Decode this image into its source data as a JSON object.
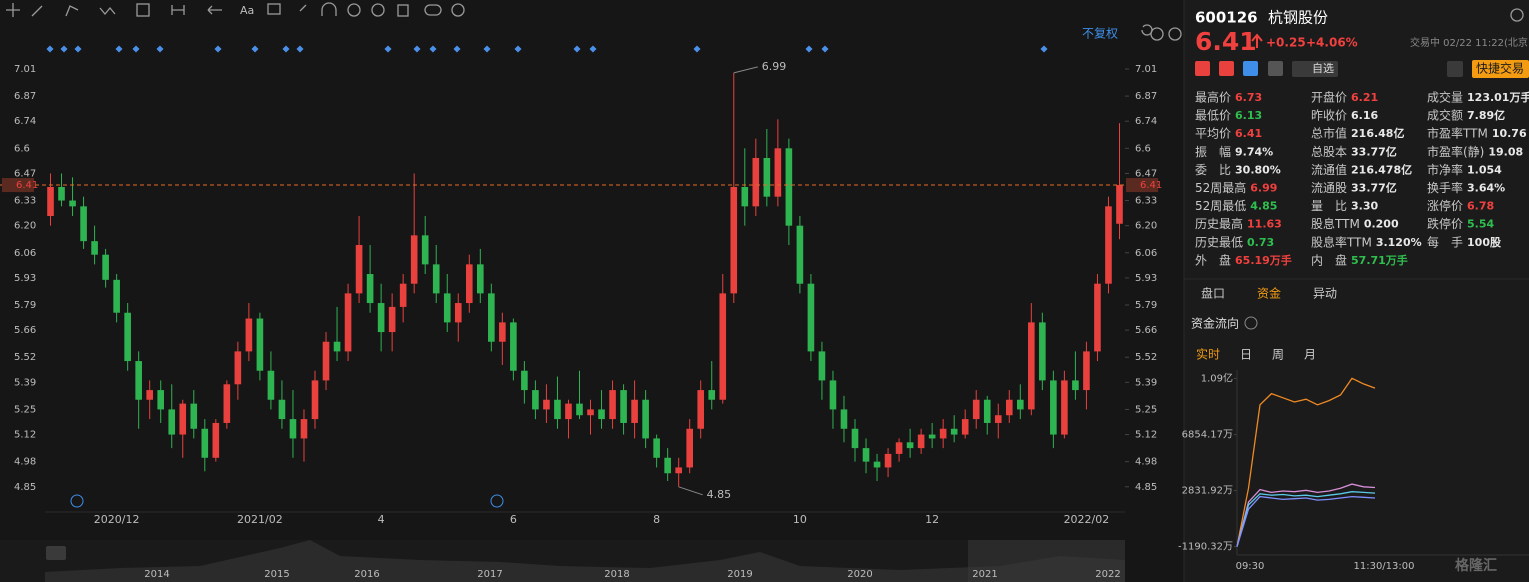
{
  "toolbar": {
    "font_tool": "Aa"
  },
  "chart_data": {
    "type": "candlestick",
    "adjust_label": "不复权",
    "categories": [
      null,
      null,
      null,
      null,
      null,
      null,
      "2020/12",
      null,
      null,
      null,
      null,
      null,
      null,
      null,
      null,
      null,
      null,
      null,
      null,
      "2021/02",
      null,
      null,
      null,
      null,
      null,
      null,
      null,
      null,
      null,
      null,
      "4",
      null,
      null,
      null,
      null,
      null,
      null,
      null,
      null,
      null,
      null,
      null,
      "6",
      null,
      null,
      null,
      null,
      null,
      null,
      null,
      null,
      null,
      null,
      null,
      null,
      "8",
      null,
      null,
      null,
      null,
      null,
      null,
      null,
      null,
      null,
      null,
      null,
      null,
      "10",
      null,
      null,
      null,
      null,
      null,
      null,
      null,
      null,
      null,
      null,
      null,
      "12",
      null,
      null,
      null,
      null,
      null,
      null,
      null,
      null,
      null,
      null,
      null,
      null,
      null,
      "2022/02",
      null,
      null,
      null
    ],
    "candles": [
      [
        6.25,
        6.47,
        6.2,
        6.4
      ],
      [
        6.4,
        6.47,
        6.3,
        6.33
      ],
      [
        6.33,
        6.45,
        6.25,
        6.3
      ],
      [
        6.3,
        6.35,
        6.08,
        6.12
      ],
      [
        6.12,
        6.2,
        6.0,
        6.05
      ],
      [
        6.05,
        6.08,
        5.88,
        5.92
      ],
      [
        5.92,
        5.95,
        5.7,
        5.75
      ],
      [
        5.75,
        5.8,
        5.45,
        5.5
      ],
      [
        5.5,
        5.55,
        5.15,
        5.3
      ],
      [
        5.3,
        5.4,
        5.2,
        5.35
      ],
      [
        5.35,
        5.4,
        5.18,
        5.25
      ],
      [
        5.25,
        5.38,
        5.05,
        5.12
      ],
      [
        5.12,
        5.3,
        5.0,
        5.28
      ],
      [
        5.28,
        5.35,
        5.1,
        5.15
      ],
      [
        5.15,
        5.2,
        4.93,
        5.0
      ],
      [
        5.0,
        5.2,
        4.98,
        5.18
      ],
      [
        5.18,
        5.4,
        5.15,
        5.38
      ],
      [
        5.38,
        5.6,
        5.3,
        5.55
      ],
      [
        5.55,
        5.8,
        5.5,
        5.72
      ],
      [
        5.72,
        5.75,
        5.4,
        5.45
      ],
      [
        5.45,
        5.55,
        5.25,
        5.3
      ],
      [
        5.3,
        5.4,
        5.15,
        5.2
      ],
      [
        5.2,
        5.35,
        5.0,
        5.1
      ],
      [
        5.1,
        5.25,
        4.98,
        5.2
      ],
      [
        5.2,
        5.45,
        5.15,
        5.4
      ],
      [
        5.4,
        5.65,
        5.35,
        5.6
      ],
      [
        5.6,
        5.78,
        5.5,
        5.55
      ],
      [
        5.55,
        5.9,
        5.5,
        5.85
      ],
      [
        5.85,
        6.25,
        5.8,
        6.1
      ],
      [
        5.95,
        6.1,
        5.75,
        5.8
      ],
      [
        5.8,
        5.9,
        5.55,
        5.65
      ],
      [
        5.65,
        5.85,
        5.55,
        5.78
      ],
      [
        5.78,
        5.95,
        5.7,
        5.9
      ],
      [
        5.9,
        6.47,
        5.85,
        6.15
      ],
      [
        6.15,
        6.25,
        5.95,
        6.0
      ],
      [
        6.0,
        6.1,
        5.8,
        5.85
      ],
      [
        5.85,
        5.95,
        5.65,
        5.7
      ],
      [
        5.7,
        5.85,
        5.6,
        5.8
      ],
      [
        5.8,
        6.05,
        5.75,
        6.0
      ],
      [
        6.0,
        6.08,
        5.8,
        5.85
      ],
      [
        5.85,
        5.9,
        5.55,
        5.6
      ],
      [
        5.6,
        5.75,
        5.48,
        5.7
      ],
      [
        5.7,
        5.72,
        5.4,
        5.45
      ],
      [
        5.45,
        5.5,
        5.28,
        5.35
      ],
      [
        5.35,
        5.4,
        5.2,
        5.25
      ],
      [
        5.25,
        5.38,
        5.18,
        5.3
      ],
      [
        5.3,
        5.42,
        5.15,
        5.2
      ],
      [
        5.2,
        5.3,
        5.1,
        5.28
      ],
      [
        5.28,
        5.45,
        5.2,
        5.22
      ],
      [
        5.22,
        5.3,
        5.12,
        5.25
      ],
      [
        5.25,
        5.35,
        5.15,
        5.2
      ],
      [
        5.2,
        5.4,
        5.15,
        5.35
      ],
      [
        5.35,
        5.38,
        5.12,
        5.18
      ],
      [
        5.18,
        5.4,
        5.1,
        5.3
      ],
      [
        5.3,
        5.35,
        5.05,
        5.1
      ],
      [
        5.1,
        5.12,
        4.95,
        5.0
      ],
      [
        5.0,
        5.05,
        4.88,
        4.92
      ],
      [
        4.92,
        5.0,
        4.85,
        4.95
      ],
      [
        4.95,
        5.2,
        4.92,
        5.15
      ],
      [
        5.15,
        5.4,
        5.1,
        5.35
      ],
      [
        5.35,
        5.5,
        5.25,
        5.3
      ],
      [
        5.3,
        5.95,
        5.28,
        5.85
      ],
      [
        5.85,
        6.99,
        5.8,
        6.4
      ],
      [
        6.4,
        6.6,
        6.2,
        6.3
      ],
      [
        6.3,
        6.65,
        6.25,
        6.55
      ],
      [
        6.55,
        6.7,
        6.3,
        6.35
      ],
      [
        6.35,
        6.75,
        6.3,
        6.6
      ],
      [
        6.6,
        6.65,
        6.1,
        6.2
      ],
      [
        6.2,
        6.25,
        5.85,
        5.9
      ],
      [
        5.9,
        5.95,
        5.5,
        5.55
      ],
      [
        5.55,
        5.6,
        5.3,
        5.4
      ],
      [
        5.4,
        5.45,
        5.15,
        5.25
      ],
      [
        5.25,
        5.32,
        5.08,
        5.15
      ],
      [
        5.15,
        5.2,
        4.98,
        5.05
      ],
      [
        5.05,
        5.1,
        4.92,
        4.98
      ],
      [
        4.98,
        5.02,
        4.88,
        4.95
      ],
      [
        4.95,
        5.05,
        4.9,
        5.02
      ],
      [
        5.02,
        5.1,
        4.98,
        5.08
      ],
      [
        5.08,
        5.15,
        5.0,
        5.05
      ],
      [
        5.05,
        5.15,
        5.02,
        5.12
      ],
      [
        5.12,
        5.18,
        5.05,
        5.1
      ],
      [
        5.1,
        5.2,
        5.05,
        5.15
      ],
      [
        5.15,
        5.22,
        5.08,
        5.12
      ],
      [
        5.12,
        5.25,
        5.1,
        5.2
      ],
      [
        5.2,
        5.35,
        5.15,
        5.3
      ],
      [
        5.3,
        5.32,
        5.12,
        5.18
      ],
      [
        5.18,
        5.28,
        5.1,
        5.22
      ],
      [
        5.22,
        5.35,
        5.18,
        5.3
      ],
      [
        5.3,
        5.38,
        5.2,
        5.25
      ],
      [
        5.25,
        5.8,
        5.22,
        5.7
      ],
      [
        5.7,
        5.75,
        5.35,
        5.4
      ],
      [
        5.4,
        5.45,
        5.05,
        5.12
      ],
      [
        5.12,
        5.45,
        5.1,
        5.4
      ],
      [
        5.4,
        5.55,
        5.3,
        5.35
      ],
      [
        5.35,
        5.6,
        5.25,
        5.55
      ],
      [
        5.55,
        5.95,
        5.5,
        5.9
      ],
      [
        5.9,
        6.35,
        5.85,
        6.3
      ],
      [
        6.21,
        6.73,
        6.13,
        6.41
      ]
    ],
    "up_color": "#e8413e",
    "down_color": "#2fb452",
    "ylim": [
      4.73,
      7.16
    ],
    "yticks": [
      7.01,
      6.87,
      6.74,
      6.6,
      {
        "value": 6.47,
        "label": "6.47"
      },
      6.33,
      {
        "value": 6.2,
        "label": "6.20"
      },
      6.06,
      5.93,
      5.79,
      5.66,
      5.52,
      5.39,
      5.25,
      5.12,
      4.98,
      4.85
    ],
    "last_price": 6.41,
    "last_price_color": "#e8692a"
  },
  "navigator": {
    "years": [
      "2014",
      "2015",
      "2016",
      "2017",
      "2018",
      "2019",
      "2020",
      "2021",
      "2022"
    ]
  },
  "quote": {
    "code": "600126",
    "name": "杭钢股份",
    "price": "6.41",
    "change": "+0.25",
    "change_pct": "+4.06%",
    "status": "交易中 02/22 11:22(北京",
    "watch": "自选",
    "trade": "快捷交易"
  },
  "stats": [
    [
      {
        "label": "最高价",
        "value": "6.73",
        "tone": "up"
      },
      {
        "label": "最低价",
        "value": "6.13",
        "tone": "down"
      },
      {
        "label": "平均价",
        "value": "6.41",
        "tone": "up"
      },
      {
        "label": "振　幅",
        "value": "9.74%"
      },
      {
        "label": "委　比",
        "value": "30.80%"
      },
      {
        "label": "52周最高",
        "value": "6.99",
        "tone": "up"
      },
      {
        "label": "52周最低",
        "value": "4.85",
        "tone": "down"
      },
      {
        "label": "历史最高",
        "value": "11.63",
        "tone": "up"
      },
      {
        "label": "历史最低",
        "value": "0.73",
        "tone": "down"
      },
      {
        "label": "外　盘",
        "value": "65.19万手",
        "tone": "up"
      }
    ],
    [
      {
        "label": "开盘价",
        "value": "6.21",
        "tone": "up"
      },
      {
        "label": "昨收价",
        "value": "6.16"
      },
      {
        "label": "总市值",
        "value": "216.48亿"
      },
      {
        "label": "总股本",
        "value": "33.77亿"
      },
      {
        "label": "流通值",
        "value": "216.478亿"
      },
      {
        "label": "流通股",
        "value": "33.77亿"
      },
      {
        "label": "量　比",
        "value": "3.30"
      },
      {
        "label": "股息TTM",
        "value": "0.200"
      },
      {
        "label": "股息率TTM",
        "value": "3.120%"
      },
      {
        "label": "内　盘",
        "value": "57.71万手",
        "tone": "down"
      }
    ],
    [
      {
        "label": "成交量",
        "value": "123.01万手"
      },
      {
        "label": "成交额",
        "value": "7.89亿"
      },
      {
        "label": "市盈率TTM",
        "value": "10.76"
      },
      {
        "label": "市盈率(静)",
        "value": "19.08"
      },
      {
        "label": "市净率",
        "value": "1.054"
      },
      {
        "label": "换手率",
        "value": "3.64%"
      },
      {
        "label": "涨停价",
        "value": "6.78",
        "tone": "up"
      },
      {
        "label": "跌停价",
        "value": "5.54",
        "tone": "down"
      },
      {
        "label": "每　手",
        "value": "100股"
      }
    ]
  ],
  "tabs": {
    "items": [
      "盘口",
      "资金",
      "异动"
    ],
    "active": 1
  },
  "fund_flow": {
    "title": "资金流向",
    "periods": [
      "实时",
      "日",
      "周",
      "月"
    ],
    "active": 0,
    "ylim": [
      -1800,
      11500
    ],
    "yticks": [
      {
        "value": 10900,
        "label": "1.09亿"
      },
      {
        "value": 6854.17,
        "label": "6854.17万"
      },
      {
        "value": 2831.92,
        "label": "2831.92万"
      },
      {
        "value": -1190.32,
        "label": "-1190.32万"
      }
    ],
    "x_labels": [
      "09:30",
      "11:30/13:00"
    ],
    "series": [
      {
        "color": "#f08a24",
        "values": [
          -1190,
          3000,
          9000,
          9800,
          9500,
          9200,
          9400,
          9000,
          9300,
          9700,
          10900,
          10500,
          10200
        ]
      },
      {
        "color": "#d88fd8",
        "values": [
          -1190,
          2000,
          2900,
          2700,
          2800,
          2750,
          2850,
          2700,
          2800,
          3000,
          3300,
          3100,
          3050
        ]
      },
      {
        "color": "#5bc8e8",
        "values": [
          -1190,
          1800,
          2600,
          2500,
          2550,
          2450,
          2500,
          2400,
          2500,
          2600,
          2750,
          2700,
          2650
        ]
      },
      {
        "color": "#8090ff",
        "values": [
          -1190,
          1500,
          2400,
          2300,
          2200,
          2250,
          2300,
          2150,
          2200,
          2300,
          2400,
          2350,
          2300
        ]
      }
    ]
  },
  "watermark": "格隆汇"
}
